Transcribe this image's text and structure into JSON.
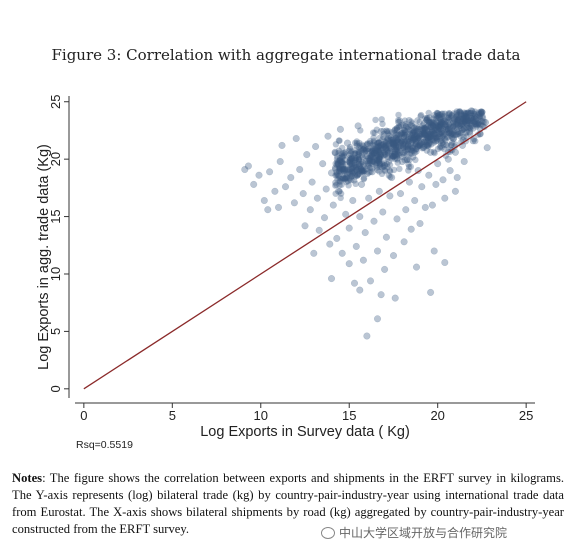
{
  "figure_title": "Figure 3: Correlation with aggregate international trade data",
  "notes": {
    "label": "Notes",
    "text": ": The figure shows the correlation between exports and shipments in the ERFT survey in kilograms. The Y-axis represents (log) bilateral trade (kg) by country-pair-industry-year using international trade data from Eurostat. The X-axis shows bilateral shipments by road (kg) aggregated by country-pair-industry-year constructed from the ERFT survey."
  },
  "watermark": "中山大学区域开放与合作研究院",
  "chart_data": {
    "type": "scatter",
    "xlabel": "Log  Exports in Survey data ( Kg)",
    "ylabel": "Log Exports in agg. trade data (Kg)",
    "xlim": [
      -0.5,
      25.5
    ],
    "ylim": [
      -0.8,
      25.5
    ],
    "xticks": [
      0,
      5,
      10,
      15,
      20,
      25
    ],
    "yticks": [
      0,
      5,
      10,
      15,
      20,
      25
    ],
    "annotation": "Rsq=0.5519",
    "reference_line": {
      "from": [
        0,
        0
      ],
      "to": [
        25,
        25
      ],
      "color": "#8b2a2a"
    },
    "marker_color": "#3a5a80",
    "grid": false,
    "points": [
      [
        9.3,
        19.4
      ],
      [
        9.1,
        19.1
      ],
      [
        9.6,
        17.8
      ],
      [
        9.9,
        18.6
      ],
      [
        10.2,
        16.4
      ],
      [
        10.5,
        18.9
      ],
      [
        10.8,
        17.2
      ],
      [
        11.1,
        19.8
      ],
      [
        11.0,
        15.8
      ],
      [
        11.4,
        17.6
      ],
      [
        11.7,
        18.4
      ],
      [
        11.9,
        16.2
      ],
      [
        12.2,
        19.1
      ],
      [
        12.4,
        17.0
      ],
      [
        12.6,
        20.4
      ],
      [
        12.8,
        15.6
      ],
      [
        12.5,
        14.2
      ],
      [
        12.9,
        18.0
      ],
      [
        13.1,
        21.1
      ],
      [
        13.2,
        16.6
      ],
      [
        13.3,
        13.8
      ],
      [
        13.5,
        19.6
      ],
      [
        13.7,
        17.4
      ],
      [
        13.6,
        14.9
      ],
      [
        13.8,
        22.0
      ],
      [
        13.9,
        12.6
      ],
      [
        14.0,
        18.8
      ],
      [
        14.1,
        16.0
      ],
      [
        14.2,
        20.6
      ],
      [
        14.3,
        13.1
      ],
      [
        14.4,
        17.2
      ],
      [
        14.5,
        22.6
      ],
      [
        14.6,
        11.8
      ],
      [
        14.7,
        19.0
      ],
      [
        14.8,
        15.2
      ],
      [
        14.9,
        21.4
      ],
      [
        15.0,
        14.0
      ],
      [
        15.0,
        10.9
      ],
      [
        15.1,
        18.2
      ],
      [
        15.2,
        16.4
      ],
      [
        15.3,
        20.1
      ],
      [
        15.4,
        12.4
      ],
      [
        15.5,
        22.9
      ],
      [
        15.6,
        15.0
      ],
      [
        15.6,
        8.6
      ],
      [
        15.7,
        17.8
      ],
      [
        15.8,
        19.6
      ],
      [
        15.8,
        11.2
      ],
      [
        15.9,
        13.6
      ],
      [
        16.0,
        21.2
      ],
      [
        16.0,
        4.6
      ],
      [
        16.1,
        16.6
      ],
      [
        16.2,
        9.4
      ],
      [
        16.3,
        18.9
      ],
      [
        16.4,
        14.6
      ],
      [
        16.5,
        20.8
      ],
      [
        16.6,
        12.0
      ],
      [
        16.6,
        6.1
      ],
      [
        16.7,
        17.2
      ],
      [
        16.8,
        22.4
      ],
      [
        16.9,
        15.4
      ],
      [
        17.0,
        19.4
      ],
      [
        17.0,
        10.4
      ],
      [
        17.1,
        13.2
      ],
      [
        17.2,
        21.8
      ],
      [
        17.3,
        16.8
      ],
      [
        17.4,
        18.4
      ],
      [
        17.5,
        11.6
      ],
      [
        17.6,
        20.4
      ],
      [
        17.7,
        14.8
      ],
      [
        17.8,
        23.2
      ],
      [
        17.9,
        17.0
      ],
      [
        18.0,
        19.8
      ],
      [
        18.1,
        12.8
      ],
      [
        18.2,
        15.6
      ],
      [
        18.3,
        21.6
      ],
      [
        18.4,
        18.0
      ],
      [
        18.5,
        13.9
      ],
      [
        18.6,
        20.2
      ],
      [
        18.7,
        16.4
      ],
      [
        18.8,
        22.8
      ],
      [
        18.9,
        19.0
      ],
      [
        19.0,
        14.4
      ],
      [
        19.1,
        17.6
      ],
      [
        19.2,
        21.0
      ],
      [
        19.3,
        15.8
      ],
      [
        19.4,
        23.4
      ],
      [
        19.5,
        18.6
      ],
      [
        19.6,
        20.6
      ],
      [
        19.7,
        16.0
      ],
      [
        19.8,
        22.2
      ],
      [
        19.9,
        17.8
      ],
      [
        20.0,
        19.6
      ],
      [
        20.1,
        23.6
      ],
      [
        20.2,
        21.4
      ],
      [
        20.3,
        18.2
      ],
      [
        20.4,
        16.6
      ],
      [
        20.5,
        22.6
      ],
      [
        20.6,
        20.0
      ],
      [
        20.7,
        19.0
      ],
      [
        20.8,
        23.8
      ],
      [
        20.9,
        21.8
      ],
      [
        21.0,
        20.6
      ],
      [
        21.1,
        18.4
      ],
      [
        21.2,
        22.9
      ],
      [
        21.3,
        24.0
      ],
      [
        21.4,
        21.2
      ],
      [
        21.5,
        19.8
      ],
      [
        21.6,
        23.2
      ],
      [
        21.8,
        22.4
      ],
      [
        21.9,
        24.2
      ],
      [
        22.0,
        21.6
      ],
      [
        22.2,
        23.6
      ],
      [
        22.4,
        22.2
      ],
      [
        22.5,
        24.1
      ],
      [
        22.7,
        23.2
      ],
      [
        22.8,
        21.0
      ],
      [
        19.6,
        8.4
      ],
      [
        20.4,
        11.0
      ],
      [
        17.6,
        7.9
      ],
      [
        10.4,
        15.6
      ],
      [
        11.2,
        21.2
      ],
      [
        12.0,
        21.8
      ],
      [
        13.0,
        11.8
      ],
      [
        14.0,
        9.6
      ],
      [
        15.3,
        9.2
      ],
      [
        16.8,
        8.2
      ],
      [
        18.8,
        10.6
      ],
      [
        19.8,
        12.0
      ],
      [
        21.0,
        17.2
      ]
    ]
  }
}
